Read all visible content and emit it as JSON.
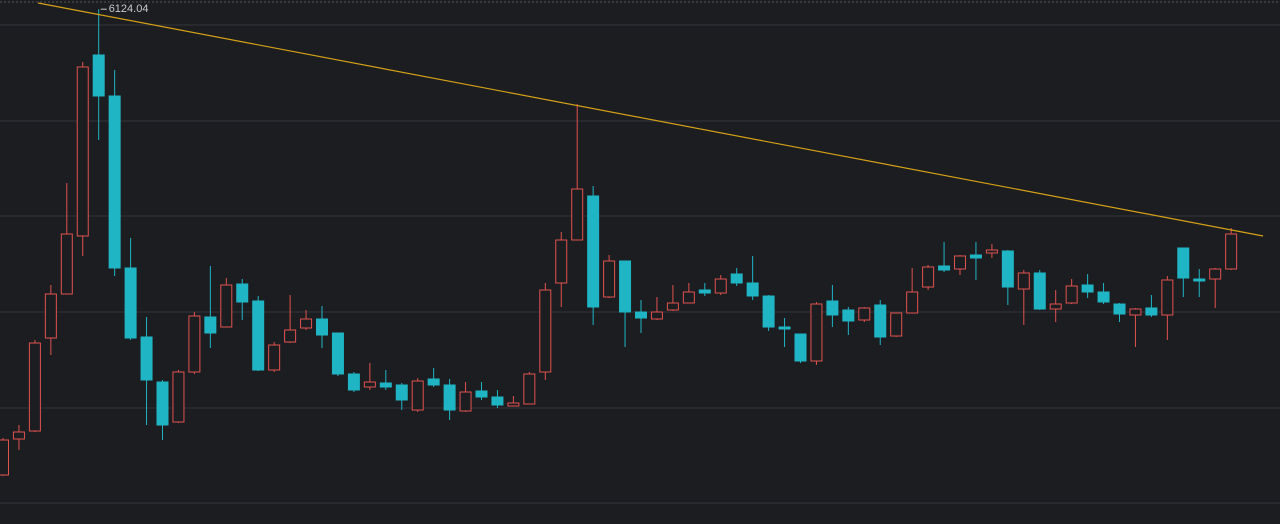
{
  "chart_data": {
    "type": "candlestick",
    "open": [
      3795,
      3975,
      4015,
      4480,
      4700,
      4990,
      5895,
      5690,
      4830,
      4485,
      4260,
      4060,
      4310,
      4585,
      4535,
      4750,
      4665,
      4320,
      4460,
      4530,
      4575,
      4505,
      4300,
      4235,
      4255,
      4245,
      4120,
      4275,
      4245,
      4115,
      4215,
      4185,
      4140,
      4150,
      4310,
      4755,
      4970,
      5190,
      4685,
      4865,
      4610,
      4575,
      4620,
      4655,
      4720,
      4705,
      4800,
      4755,
      4690,
      4535,
      4500,
      4365,
      4665,
      4620,
      4570,
      4645,
      4490,
      4605,
      4735,
      4840,
      4825,
      4895,
      4905,
      4915,
      4725,
      4805,
      4625,
      4655,
      4745,
      4710,
      4650,
      4595,
      4630,
      4595,
      4930,
      4775,
      4775,
      4825
    ],
    "high": [
      3980,
      4045,
      4470,
      4745,
      5255,
      5860,
      6124.04,
      5820,
      4980,
      4585,
      4270,
      4320,
      4610,
      4840,
      4780,
      4775,
      4690,
      4460,
      4695,
      4620,
      4640,
      4505,
      4310,
      4355,
      4320,
      4255,
      4280,
      4330,
      4275,
      4260,
      4260,
      4220,
      4190,
      4310,
      4755,
      5010,
      5650,
      5240,
      4895,
      4865,
      4670,
      4685,
      4745,
      4755,
      4755,
      4795,
      4830,
      4890,
      4695,
      4580,
      4500,
      4660,
      4745,
      4635,
      4635,
      4670,
      4605,
      4830,
      4845,
      4960,
      4895,
      4960,
      4950,
      4920,
      4820,
      4820,
      4720,
      4775,
      4800,
      4755,
      4655,
      4630,
      4695,
      4790,
      4930,
      4825,
      4830,
      5030
    ],
    "low": [
      3790,
      3920,
      4010,
      4395,
      4700,
      4890,
      5470,
      4790,
      4470,
      4045,
      3970,
      4055,
      4300,
      4430,
      4535,
      4570,
      4315,
      4310,
      4455,
      4520,
      4430,
      4290,
      4210,
      4220,
      4220,
      4120,
      4110,
      4235,
      4070,
      4110,
      4170,
      4130,
      4140,
      4150,
      4270,
      4635,
      4970,
      4545,
      4680,
      4435,
      4505,
      4570,
      4615,
      4655,
      4690,
      4695,
      4740,
      4670,
      4515,
      4435,
      4355,
      4345,
      4535,
      4495,
      4560,
      4445,
      4485,
      4605,
      4720,
      4810,
      4795,
      4770,
      4880,
      4645,
      4545,
      4620,
      4560,
      4650,
      4680,
      4650,
      4560,
      4435,
      4585,
      4470,
      4685,
      4685,
      4630,
      4820
    ],
    "close": [
      3970,
      4010,
      4455,
      4700,
      5000,
      5835,
      5690,
      4830,
      4480,
      4270,
      4045,
      4310,
      4590,
      4505,
      4745,
      4660,
      4320,
      4445,
      4520,
      4575,
      4495,
      4300,
      4220,
      4260,
      4235,
      4170,
      4265,
      4245,
      4120,
      4210,
      4185,
      4145,
      4155,
      4300,
      4720,
      4970,
      5225,
      4635,
      4865,
      4610,
      4580,
      4610,
      4655,
      4710,
      4705,
      4775,
      4755,
      4690,
      4535,
      4525,
      4365,
      4650,
      4595,
      4565,
      4630,
      4485,
      4605,
      4710,
      4835,
      4820,
      4890,
      4880,
      4920,
      4735,
      4805,
      4625,
      4650,
      4740,
      4710,
      4660,
      4600,
      4625,
      4595,
      4770,
      4780,
      4765,
      4825,
      5000
    ],
    "up_color": "#e0524f",
    "down_color": "#1fb5c4",
    "ylim": [
      3550,
      6170
    ],
    "yticks": [
      6045,
      5565,
      5090,
      4610,
      4130,
      3655
    ],
    "grid": true,
    "trendline": {
      "x": [
        2.2,
        79
      ],
      "values": [
        6155,
        4990
      ],
      "color": "#d4a017"
    }
  }
}
